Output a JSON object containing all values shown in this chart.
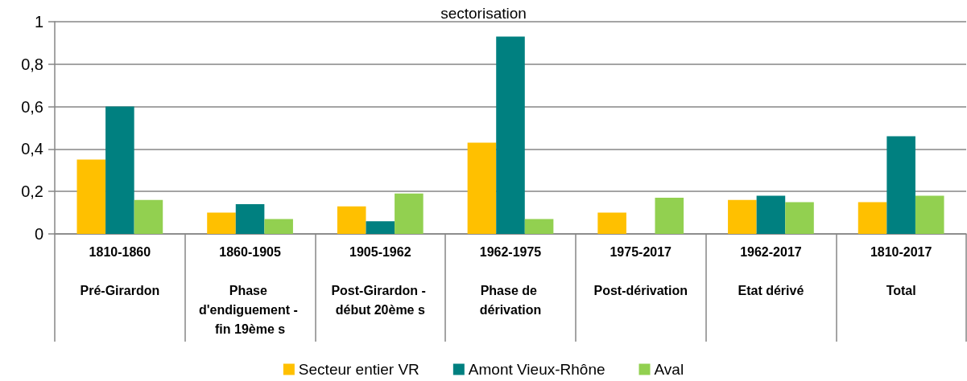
{
  "chart_data": {
    "type": "bar",
    "title": "sectorisation",
    "categories": [
      "1810-1860\nPré-Girardon",
      "1860-1905\nPhase d'endiguement - fin 19ème s",
      "1905-1962\nPost-Girardon - début 20ème s",
      "1962-1975\nPhase de dérivation",
      "1975-2017\nPost-dérivation",
      "1962-2017\nEtat dérivé",
      "1810-2017\nTotal"
    ],
    "series": [
      {
        "name": "Secteur entier VR",
        "color": "#ffc000",
        "values": [
          0.35,
          0.1,
          0.13,
          0.43,
          0.1,
          0.16,
          0.15
        ]
      },
      {
        "name": "Amont Vieux-Rhône",
        "color": "#008080",
        "values": [
          0.6,
          0.14,
          0.06,
          0.93,
          null,
          0.18,
          0.46
        ]
      },
      {
        "name": "Aval",
        "color": "#92d050",
        "values": [
          0.16,
          0.07,
          0.19,
          0.07,
          0.17,
          0.15,
          0.18
        ]
      }
    ],
    "ylim": [
      0,
      1
    ],
    "yticks": [
      0,
      {
        "value": 0.2,
        "label": "0,2"
      },
      {
        "value": 0.4,
        "label": "0,4"
      },
      {
        "value": 0.6,
        "label": "0,6"
      },
      {
        "value": 0.8,
        "label": "0,8"
      },
      1
    ],
    "grid": "y",
    "legend": "bottom"
  }
}
